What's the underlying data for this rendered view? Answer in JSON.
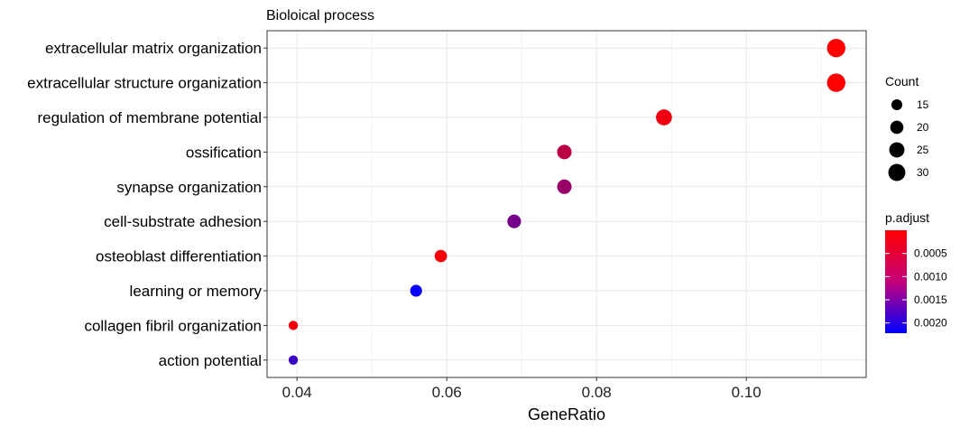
{
  "chart_data": {
    "type": "scatter",
    "title": "Bioloical process",
    "xlabel": "GeneRatio",
    "ylabel": "",
    "xlim": [
      0.036,
      0.116
    ],
    "x_ticks": [
      0.04,
      0.06,
      0.08,
      0.1
    ],
    "x_tick_labels": [
      "0.04",
      "0.06",
      "0.08",
      "0.10"
    ],
    "grid": true,
    "categories": [
      "extracellular matrix organization",
      "extracellular structure organization",
      "regulation of membrane potential",
      "ossification",
      "synapse organization",
      "cell-substrate adhesion",
      "osteoblast differentiation",
      "learning or memory",
      "collagen fibril organization",
      "action potential"
    ],
    "points": [
      {
        "term": "extracellular matrix organization",
        "gene_ratio": 0.112,
        "count": 34,
        "p_adjust": 1e-05
      },
      {
        "term": "extracellular structure organization",
        "gene_ratio": 0.112,
        "count": 34,
        "p_adjust": 2e-05
      },
      {
        "term": "regulation of membrane potential",
        "gene_ratio": 0.089,
        "count": 27,
        "p_adjust": 0.00015
      },
      {
        "term": "ossification",
        "gene_ratio": 0.0757,
        "count": 23,
        "p_adjust": 0.0006
      },
      {
        "term": "synapse organization",
        "gene_ratio": 0.0757,
        "count": 23,
        "p_adjust": 0.0009
      },
      {
        "term": "cell-substrate adhesion",
        "gene_ratio": 0.069,
        "count": 21,
        "p_adjust": 0.0012
      },
      {
        "term": "osteoblast differentiation",
        "gene_ratio": 0.0592,
        "count": 18,
        "p_adjust": 0.0001
      },
      {
        "term": "learning or memory",
        "gene_ratio": 0.0559,
        "count": 17,
        "p_adjust": 0.00215
      },
      {
        "term": "collagen fibril organization",
        "gene_ratio": 0.0395,
        "count": 12,
        "p_adjust": 0.0001
      },
      {
        "term": "action potential",
        "gene_ratio": 0.0395,
        "count": 12,
        "p_adjust": 0.0017
      }
    ],
    "legend_position": "right",
    "size_legend": {
      "title": "Count",
      "values": [
        15,
        20,
        25,
        30
      ],
      "labels": [
        "15",
        "20",
        "25",
        "30"
      ]
    },
    "color_legend": {
      "title": "p.adjust",
      "ticks": [
        0.0005,
        0.001,
        0.0015,
        0.002
      ],
      "tick_labels": [
        "0.0005",
        "0.0010",
        "0.0015",
        "0.0020"
      ],
      "range": [
        0.0,
        0.00222
      ],
      "low_color": "#FF0000",
      "high_color": "#0000FF"
    }
  }
}
